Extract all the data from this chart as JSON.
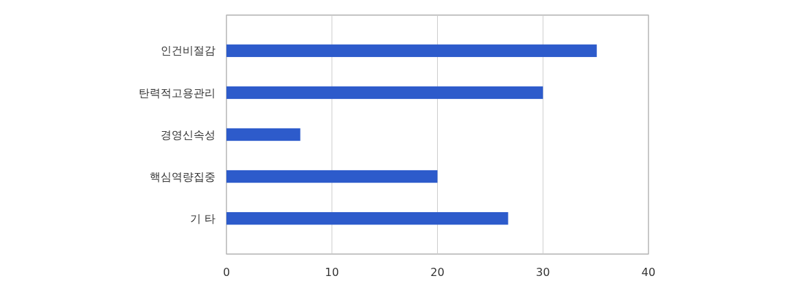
{
  "chart_data": {
    "type": "bar",
    "orientation": "horizontal",
    "categories": [
      "인건비절감",
      "탄력적고용관리",
      "경영신속성",
      "핵심역량집중",
      "기 타"
    ],
    "values": [
      35.1,
      30,
      7,
      20,
      26.7
    ],
    "color": "#2d5bcb",
    "xlim": [
      0,
      40
    ],
    "xticks": [
      0,
      10,
      20,
      30,
      40
    ],
    "grid": "x"
  }
}
